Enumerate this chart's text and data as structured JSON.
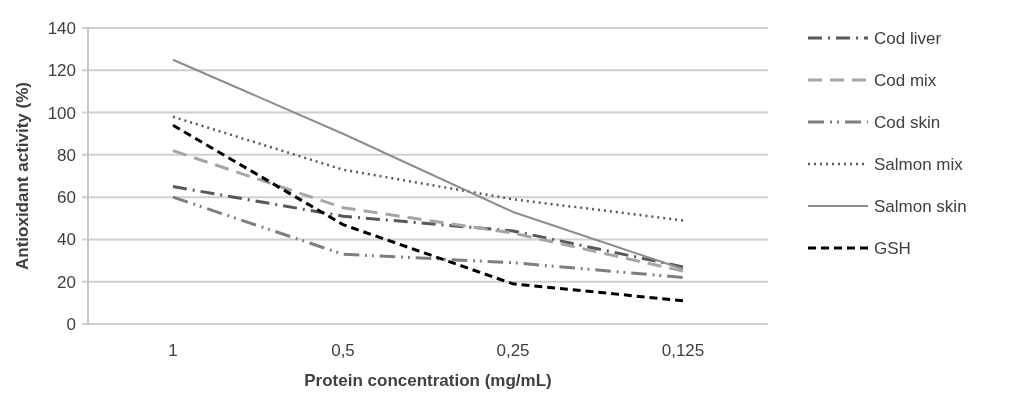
{
  "chart_data": {
    "type": "line",
    "xlabel": "Protein concentration (mg/mL)",
    "ylabel": "Antioxidant activity (%)",
    "categories": [
      "1",
      "0,5",
      "0,25",
      "0,125"
    ],
    "ylim": [
      0,
      140
    ],
    "yticks": [
      0,
      20,
      40,
      60,
      80,
      100,
      120,
      140
    ],
    "grid": "y",
    "legend": "right",
    "marker": "none",
    "series": [
      {
        "name": "Cod liver",
        "color": "#595959",
        "line_style": "dashed",
        "values": [
          65,
          51,
          44,
          27
        ]
      },
      {
        "name": "Cod mix",
        "color": "#a6a6a6",
        "line_style": "dashed",
        "values": [
          82,
          55,
          43,
          25
        ]
      },
      {
        "name": "Cod skin",
        "color": "#7f7f7f",
        "line_style": "dashed",
        "values": [
          60,
          33,
          29,
          22
        ]
      },
      {
        "name": "Salmon mix",
        "color": "#595959",
        "line_style": "dotted",
        "values": [
          98,
          73,
          59,
          49
        ]
      },
      {
        "name": "Salmon skin",
        "color": "#8c8c8c",
        "line_style": "solid",
        "values": [
          125,
          90,
          53,
          26
        ]
      },
      {
        "name": "GSH",
        "color": "#000000",
        "line_style": "dashed",
        "values": [
          94,
          47,
          19,
          11
        ]
      }
    ]
  }
}
